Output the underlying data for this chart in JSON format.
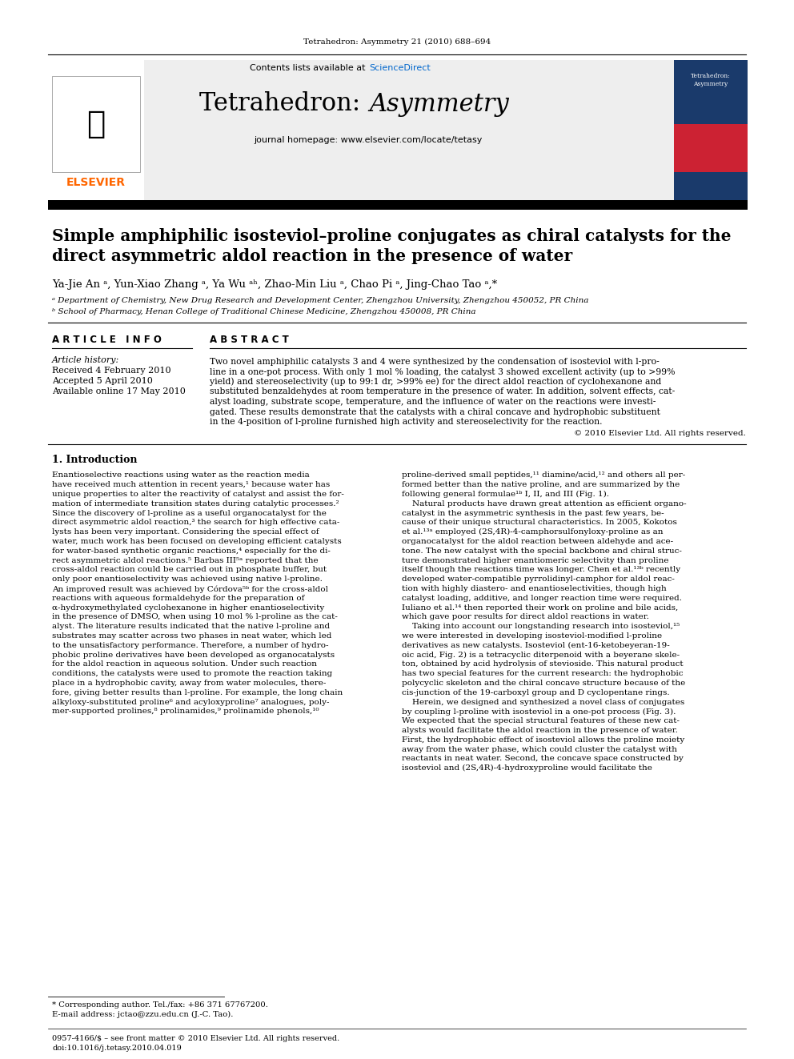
{
  "page_background": "#ffffff",
  "header_bg": "#f0f0f0",
  "top_journal_text": "Tetrahedron: Asymmetry 21 (2010) 688–694",
  "header_title": "Tetrahedron: ",
  "header_title_italic": "Asymmetry",
  "header_contents_text": "Contents lists available at ",
  "header_sciencedirect": "ScienceDirect",
  "header_homepage": "journal homepage: www.elsevier.com/locate/tetasy",
  "article_title_line1": "Simple amphiphilic isosteviol–proline conjugates as chiral catalysts for the",
  "article_title_line2": "direct asymmetric aldol reaction in the presence of water",
  "authors": "Ya-Jie An ᵃ, Yun-Xiao Zhang ᵃ, Ya Wu ᵃʰ, Zhao-Min Liu ᵃ, Chao Pi ᵃ, Jing-Chao Tao ᵃ,*",
  "affil_a": "ᵃ Department of Chemistry, New Drug Research and Development Center, Zhengzhou University, Zhengzhou 450052, PR China",
  "affil_b": "ᵇ School of Pharmacy, Henan College of Traditional Chinese Medicine, Zhengzhou 450008, PR China",
  "article_info_header": "A R T I C L E   I N F O",
  "abstract_header": "A B S T R A C T",
  "article_history_label": "Article history:",
  "received": "Received 4 February 2010",
  "accepted": "Accepted 5 April 2010",
  "available": "Available online 17 May 2010",
  "abstract_text": "Two novel amphiphilic catalysts 3 and 4 were synthesized by the condensation of isosteviol with l-pro-\nline in a one-pot process. With only 1 mol % loading, the catalyst 3 showed excellent activity (up to >99%\nyield) and stereoselectivity (up to 99:1 dr, >99% ee) for the direct aldol reaction of cyclohexanone and\nsubstituted benzaldehydes at room temperature in the presence of water. In addition, solvent effects, cat-\nalyst loading, substrate scope, temperature, and the influence of water on the reactions were investi-\ngated. These results demonstrate that the catalysts with a chiral concave and hydrophobic substituent\nin the 4-position of l-proline furnished high activity and stereoselectivity for the reaction.",
  "copyright": "© 2010 Elsevier Ltd. All rights reserved.",
  "intro_header": "1. Introduction",
  "intro_col1": "Enantioselective reactions using water as the reaction media\nhave received much attention in recent years,¹ because water has\nunique properties to alter the reactivity of catalyst and assist the for-\nmation of intermediate transition states during catalytic processes.²\nSince the discovery of l-proline as a useful organocatalyst for the\ndirect asymmetric aldol reaction,³ the search for high effective cata-\nlysts has been very important. Considering the special effect of\nwater, much work has been focused on developing efficient catalysts\nfor water-based synthetic organic reactions,⁴ especially for the di-\nrect asymmetric aldol reactions.⁵ Barbas III⁵ᵃ reported that the\ncross-aldol reaction could be carried out in phosphate buffer, but\nonly poor enantioselectivity was achieved using native l-proline.\nAn improved result was achieved by Córdova⁵ᵇ for the cross-aldol\nreactions with aqueous formaldehyde for the preparation of\nα-hydroxymethylated cyclohexanone in higher enantioselectivity\nin the presence of DMSO, when using 10 mol % l-proline as the cat-\nalyst. The literature results indicated that the native l-proline and\nsubstrates may scatter across two phases in neat water, which led\nto the unsatisfactory performance. Therefore, a number of hydro-\nphobic proline derivatives have been developed as organocatalysts\nfor the aldol reaction in aqueous solution. Under such reaction\nconditions, the catalysts were used to promote the reaction taking\nplace in a hydrophobic cavity, away from water molecules, there-\nfore, giving better results than l-proline. For example, the long chain\nalkyloxy-substituted proline⁶ and acyloxyproline⁷ analogues, poly-\nmer-supported prolines,⁸ prolinamides,⁹ prolinamide phenols,¹⁰",
  "intro_col2": "proline-derived small peptides,¹¹ diamine/acid,¹² and others all per-\nformed better than the native proline, and are summarized by the\nfollowing general formulae¹ᵇ I, II, and III (Fig. 1).\n    Natural products have drawn great attention as efficient organo-\ncatalyst in the asymmetric synthesis in the past few years, be-\ncause of their unique structural characteristics. In 2005, Kokotos\net al.¹³ᵃ employed (2S,4R)-4-camphorsulfonyloxy-proline as an\norganocatalyst for the aldol reaction between aldehyde and ace-\ntone. The new catalyst with the special backbone and chiral struc-\nture demonstrated higher enantiomeric selectivity than proline\nitself though the reactions time was longer. Chen et al.¹³ᵇ recently\ndeveloped water-compatible pyrrolidinyl-camphor for aldol reac-\ntion with highly diastero- and enantioselectivities, though high\ncatalyst loading, additive, and longer reaction time were required.\nIuliano et al.¹⁴ then reported their work on proline and bile acids,\nwhich gave poor results for direct aldol reactions in water.\n    Taking into account our longstanding research into isosteviol,¹⁵\nwe were interested in developing isosteviol-modified l-proline\nderivatives as new catalysts. Isosteviol (ent-16-ketobeyeran-19-\noic acid, Fig. 2) is a tetracyclic diterpenoid with a beyerane skele-\nton, obtained by acid hydrolysis of stevioside. This natural product\nhas two special features for the current research: the hydrophobic\npolycyclic skeleton and the chiral concave structure because of the\ncis-junction of the 19-carboxyl group and D cyclopentane rings.\n    Herein, we designed and synthesized a novel class of conjugates\nby coupling l-proline with isosteviol in a one-pot process (Fig. 3).\nWe expected that the special structural features of these new cat-\nalysts would facilitate the aldol reaction in the presence of water.\nFirst, the hydrophobic effect of isosteviol allows the proline moiety\naway from the water phase, which could cluster the catalyst with\nreactants in neat water. Second, the concave space constructed by\nisosteviol and (2S,4R)-4-hydroxyproline would facilitate the",
  "footnote_star": "* Corresponding author. Tel./fax: +86 371 67767200.",
  "footnote_email": "E-mail address: jctao@zzu.edu.cn (J.-C. Tao).",
  "footer_issn": "0957-4166/$ – see front matter © 2010 Elsevier Ltd. All rights reserved.",
  "footer_doi": "doi:10.1016/j.tetasy.2010.04.019"
}
